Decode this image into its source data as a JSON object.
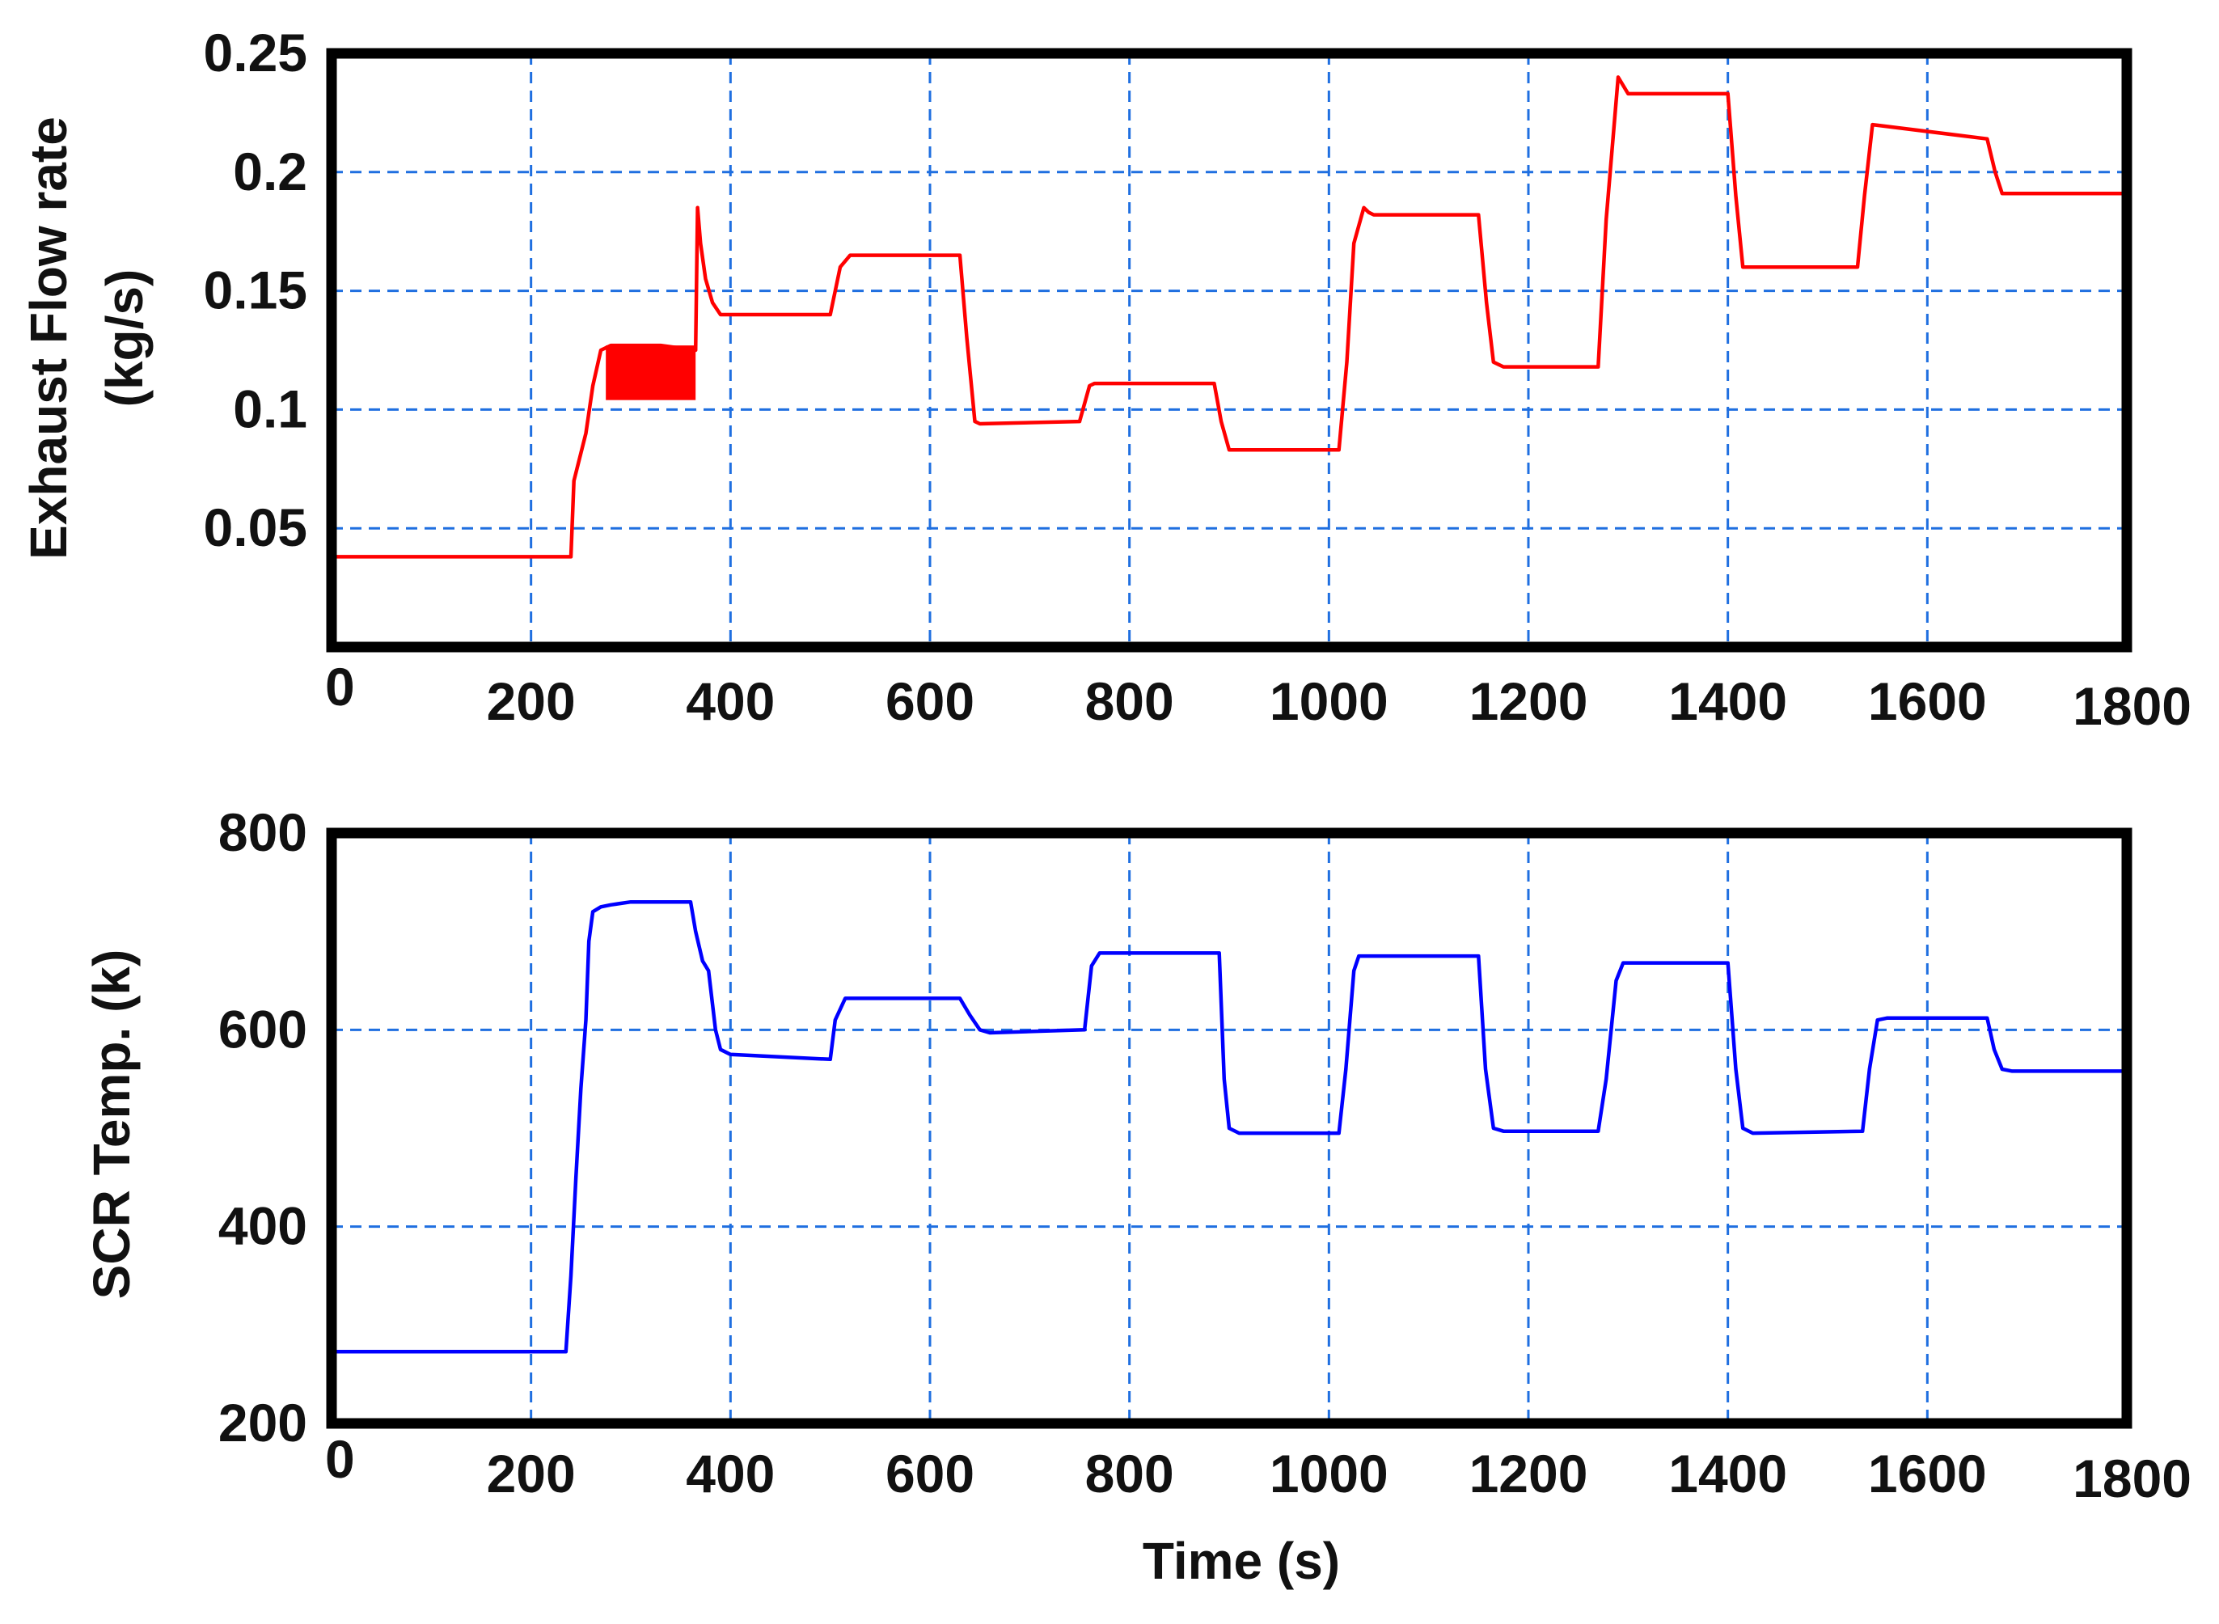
{
  "chart_data": [
    {
      "type": "line",
      "title": "",
      "xlabel": "",
      "ylabel_lines": [
        "Exhaust Flow rate",
        "(kg/s)"
      ],
      "xlim": [
        0,
        1800
      ],
      "ylim": [
        0,
        0.25
      ],
      "xticks": [
        "0",
        "200",
        "400",
        "600",
        "800",
        "1000",
        "1200",
        "1400",
        "1600",
        "1800"
      ],
      "xtick_values": [
        0,
        200,
        400,
        600,
        800,
        1000,
        1200,
        1400,
        1600,
        1800
      ],
      "yticks": [
        "0.05",
        "0.1",
        "0.15",
        "0.2",
        "0.25"
      ],
      "ytick_values": [
        0.05,
        0.1,
        0.15,
        0.2,
        0.25
      ],
      "grid": true,
      "color": "#ff0000",
      "series": [
        {
          "x": [
            0,
            240,
            243,
            255,
            262,
            270,
            280,
            300,
            330,
            365,
            367,
            370,
            375,
            382,
            390,
            400,
            500,
            510,
            520,
            630,
            637,
            645,
            650,
            750,
            760,
            765,
            885,
            892,
            900,
            1010,
            1018,
            1025,
            1035,
            1040,
            1045,
            1150,
            1158,
            1165,
            1175,
            1270,
            1278,
            1290,
            1300,
            1400,
            1408,
            1415,
            1530,
            1537,
            1545,
            1660,
            1668,
            1675,
            1800
          ],
          "y": [
            0.038,
            0.038,
            0.07,
            0.09,
            0.11,
            0.125,
            0.127,
            0.127,
            0.127,
            0.125,
            0.185,
            0.17,
            0.155,
            0.145,
            0.14,
            0.14,
            0.14,
            0.16,
            0.165,
            0.165,
            0.13,
            0.095,
            0.094,
            0.095,
            0.11,
            0.111,
            0.111,
            0.095,
            0.083,
            0.083,
            0.12,
            0.17,
            0.185,
            0.183,
            0.182,
            0.182,
            0.145,
            0.12,
            0.118,
            0.118,
            0.18,
            0.24,
            0.233,
            0.233,
            0.19,
            0.16,
            0.16,
            0.19,
            0.22,
            0.214,
            0.2,
            0.191,
            0.191
          ],
          "band": {
            "x_from": 275,
            "x_to": 365,
            "low": 0.104,
            "high": 0.127
          }
        }
      ]
    },
    {
      "type": "line",
      "title": "",
      "xlabel": "Time (s)",
      "ylabel_lines": [
        "SCR Temp. (k)"
      ],
      "xlim": [
        0,
        1800
      ],
      "ylim": [
        200,
        800
      ],
      "xticks": [
        "0",
        "200",
        "400",
        "600",
        "800",
        "1000",
        "1200",
        "1400",
        "1600",
        "1800"
      ],
      "xtick_values": [
        0,
        200,
        400,
        600,
        800,
        1000,
        1200,
        1400,
        1600,
        1800
      ],
      "yticks": [
        "200",
        "400",
        "600",
        "800"
      ],
      "ytick_values": [
        200,
        400,
        600,
        800
      ],
      "grid": true,
      "color": "#0000ff",
      "series": [
        {
          "x": [
            0,
            235,
            240,
            245,
            250,
            255,
            258,
            262,
            270,
            280,
            300,
            360,
            365,
            372,
            378,
            385,
            390,
            400,
            500,
            505,
            515,
            630,
            640,
            650,
            660,
            755,
            762,
            770,
            890,
            895,
            900,
            910,
            1010,
            1017,
            1025,
            1030,
            1150,
            1157,
            1165,
            1175,
            1270,
            1278,
            1288,
            1295,
            1400,
            1408,
            1415,
            1425,
            1535,
            1542,
            1550,
            1560,
            1660,
            1667,
            1675,
            1685,
            1800
          ],
          "y": [
            273,
            273,
            350,
            450,
            540,
            610,
            690,
            720,
            725,
            727,
            730,
            730,
            700,
            670,
            660,
            600,
            580,
            575,
            570,
            610,
            632,
            632,
            615,
            600,
            597,
            600,
            665,
            678,
            678,
            550,
            500,
            495,
            495,
            560,
            660,
            675,
            675,
            560,
            500,
            497,
            497,
            550,
            650,
            668,
            668,
            560,
            500,
            495,
            497,
            560,
            610,
            612,
            612,
            580,
            560,
            558,
            558
          ]
        }
      ]
    }
  ]
}
